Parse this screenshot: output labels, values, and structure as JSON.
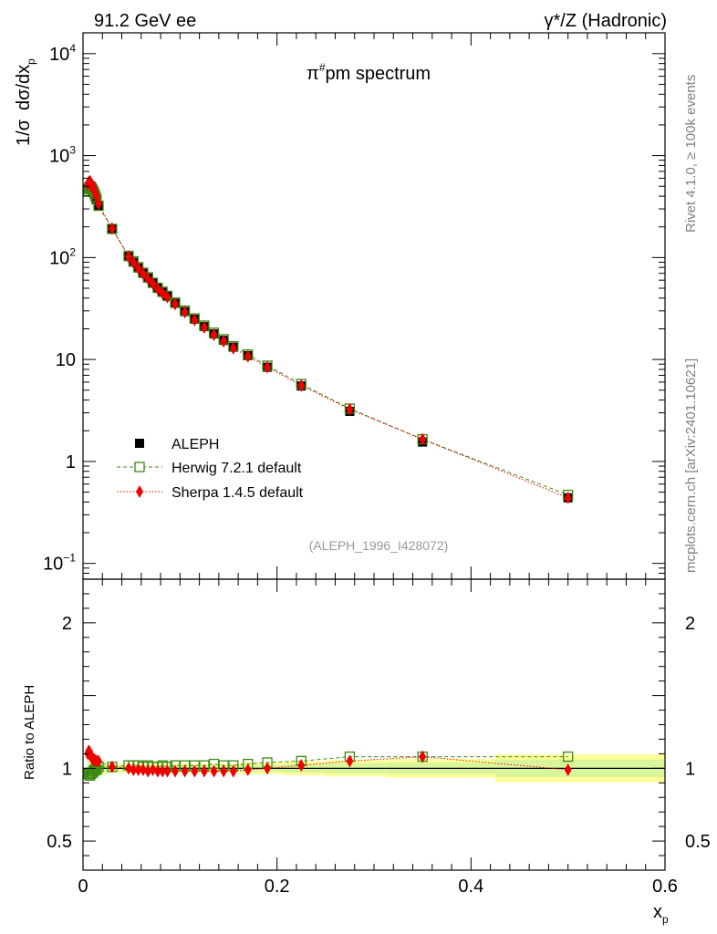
{
  "header": {
    "left": "91.2 GeV ee",
    "right": "γ*/Z (Hadronic)"
  },
  "side_text": {
    "rivet": "Rivet 4.1.0, ≥ 100k events",
    "mcplots": "mcplots.cern.ch [arXiv:2401.10621]"
  },
  "chart_data": [
    {
      "type": "scatter",
      "panel": "main",
      "title": "π#pm spectrum",
      "title_main": "π",
      "title_sup": "#",
      "title_rest": "pm spectrum",
      "ylabel_prefix": "1/σ",
      "ylabel_main": "dσ/dx",
      "ylabel_sub": "p",
      "yscale": "log",
      "ylim": [
        0.07,
        16000
      ],
      "xlim": [
        0,
        0.6
      ],
      "y_ticks": [
        {
          "value": 0.1,
          "base": "10",
          "exp": "−1"
        },
        {
          "value": 1,
          "base": "1",
          "exp": ""
        },
        {
          "value": 10,
          "base": "10",
          "exp": ""
        },
        {
          "value": 100,
          "base": "10",
          "exp": "2"
        },
        {
          "value": 1000,
          "base": "10",
          "exp": "3"
        },
        {
          "value": 10000,
          "base": "10",
          "exp": "4"
        }
      ],
      "analysis_id": "(ALEPH_1996_I428072)",
      "legend": [
        {
          "name": "ALEPH",
          "color": "#000000",
          "marker": "filled-square"
        },
        {
          "name": "Herwig 7.2.1 default",
          "color": "#3a8a10",
          "marker": "open-square",
          "line": "dashed"
        },
        {
          "name": "Sherpa 1.4.5 default",
          "color": "#ee0000",
          "marker": "diamond",
          "line": "dotted"
        }
      ],
      "x": [
        0.005,
        0.006,
        0.007,
        0.008,
        0.009,
        0.01,
        0.011,
        0.012,
        0.013,
        0.014,
        0.016,
        0.03,
        0.047,
        0.052,
        0.057,
        0.062,
        0.067,
        0.072,
        0.077,
        0.082,
        0.087,
        0.095,
        0.105,
        0.115,
        0.125,
        0.135,
        0.145,
        0.155,
        0.17,
        0.19,
        0.225,
        0.275,
        0.35,
        0.5
      ],
      "series": [
        {
          "name": "ALEPH",
          "values": [
            470,
            490,
            505,
            500,
            490,
            470,
            450,
            425,
            400,
            375,
            320,
            190,
            102,
            90,
            79,
            70,
            63,
            56,
            50,
            45.5,
            41.5,
            35.5,
            29.5,
            24.8,
            21.0,
            17.8,
            15.4,
            13.2,
            10.9,
            8.4,
            5.5,
            3.1,
            1.55,
            0.44
          ]
        },
        {
          "name": "Herwig 7.2.1 default",
          "values": [
            450,
            470,
            480,
            480,
            470,
            455,
            440,
            420,
            395,
            372,
            322,
            191,
            104,
            92,
            80.5,
            71,
            64,
            56.5,
            50.5,
            46.2,
            42.1,
            36.2,
            30.2,
            25.3,
            21.5,
            18.3,
            15.8,
            13.5,
            11.2,
            8.7,
            5.75,
            3.3,
            1.65,
            0.47
          ]
        },
        {
          "name": "Sherpa 1.4.5 default",
          "values": [
            520,
            550,
            560,
            545,
            525,
            500,
            475,
            450,
            420,
            395,
            335,
            193,
            102,
            89.5,
            78.5,
            69.5,
            62,
            55.5,
            49.3,
            44.8,
            40.9,
            35.0,
            29.1,
            24.4,
            20.6,
            17.5,
            15.1,
            12.9,
            10.75,
            8.4,
            5.55,
            3.25,
            1.65,
            0.44
          ]
        }
      ]
    },
    {
      "type": "scatter",
      "panel": "ratio",
      "ylabel": "Ratio to ALEPH",
      "xlabel_main": "x",
      "xlabel_sub": "p",
      "ylim": [
        0.3,
        2.3
      ],
      "xlim": [
        0,
        0.6
      ],
      "y_ticks": [
        {
          "value": 0.5,
          "label": "0.5"
        },
        {
          "value": 1,
          "label": "1"
        },
        {
          "value": 2,
          "label": "2"
        }
      ],
      "x_ticks": [
        {
          "value": 0,
          "label": "0"
        },
        {
          "value": 0.2,
          "label": "0.2"
        },
        {
          "value": 0.4,
          "label": "0.4"
        },
        {
          "value": 0.6,
          "label": "0.6"
        }
      ],
      "band_color_inner": "#d8f59c",
      "band_color_outer": "#ffff99",
      "x": [
        0.005,
        0.006,
        0.007,
        0.008,
        0.009,
        0.01,
        0.011,
        0.012,
        0.013,
        0.014,
        0.016,
        0.03,
        0.047,
        0.052,
        0.057,
        0.062,
        0.067,
        0.072,
        0.077,
        0.082,
        0.087,
        0.095,
        0.105,
        0.115,
        0.125,
        0.135,
        0.145,
        0.155,
        0.17,
        0.19,
        0.225,
        0.275,
        0.35,
        0.5
      ],
      "band_halfwidth": [
        0.05,
        0.05,
        0.04,
        0.04,
        0.04,
        0.04,
        0.03,
        0.03,
        0.03,
        0.03,
        0.03,
        0.02,
        0.02,
        0.02,
        0.02,
        0.02,
        0.02,
        0.02,
        0.02,
        0.02,
        0.02,
        0.02,
        0.02,
        0.02,
        0.02,
        0.02,
        0.02,
        0.02,
        0.025,
        0.025,
        0.03,
        0.035,
        0.04,
        0.06
      ],
      "series": [
        {
          "name": "Herwig 7.2.1 default",
          "values": [
            0.96,
            0.96,
            0.95,
            0.96,
            0.97,
            0.97,
            0.98,
            0.99,
            0.99,
            0.99,
            1.01,
            1.01,
            1.02,
            1.02,
            1.02,
            1.01,
            1.02,
            1.01,
            1.01,
            1.02,
            1.01,
            1.02,
            1.02,
            1.02,
            1.02,
            1.03,
            1.02,
            1.02,
            1.03,
            1.04,
            1.05,
            1.08,
            1.08,
            1.08
          ]
        },
        {
          "name": "Sherpa 1.4.5 default",
          "values": [
            1.1,
            1.12,
            1.11,
            1.09,
            1.07,
            1.06,
            1.06,
            1.06,
            1.05,
            1.05,
            1.05,
            1.01,
            1.0,
            0.99,
            0.99,
            0.99,
            0.98,
            0.99,
            0.98,
            0.98,
            0.98,
            0.98,
            0.98,
            0.98,
            0.98,
            0.98,
            0.98,
            0.98,
            0.99,
            1.0,
            1.02,
            1.05,
            1.08,
            0.99
          ]
        }
      ]
    }
  ]
}
